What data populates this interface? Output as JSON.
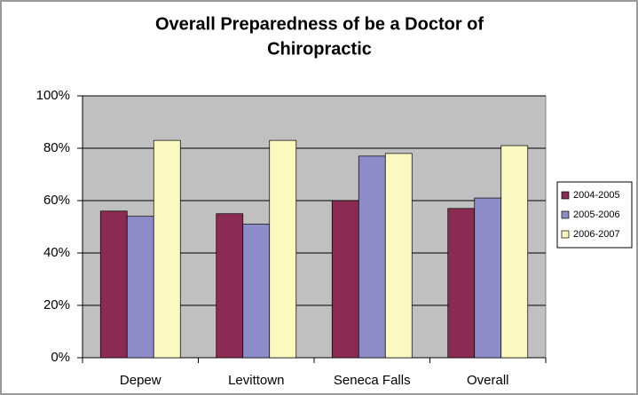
{
  "chart_data": {
    "type": "bar",
    "title": [
      "Overall Preparedness of be a Doctor of",
      "Chiropractic"
    ],
    "categories": [
      "Depew",
      "Levittown",
      "Seneca Falls",
      "Overall"
    ],
    "series": [
      {
        "name": "2004-2005",
        "color": "#8b2a52",
        "values": [
          56,
          55,
          60,
          57
        ]
      },
      {
        "name": "2005-2006",
        "color": "#8e8cc8",
        "values": [
          54,
          51,
          77,
          61
        ]
      },
      {
        "name": "2006-2007",
        "color": "#fcf9c0",
        "values": [
          83,
          83,
          78,
          81
        ]
      }
    ],
    "ylim": [
      0,
      100
    ],
    "yticks": [
      {
        "value": 0,
        "label": "0%"
      },
      {
        "value": 20,
        "label": "20%"
      },
      {
        "value": 40,
        "label": "40%"
      },
      {
        "value": 60,
        "label": "60%"
      },
      {
        "value": 80,
        "label": "80%"
      },
      {
        "value": 100,
        "label": "100%"
      }
    ],
    "grid": true,
    "legend": "right"
  }
}
